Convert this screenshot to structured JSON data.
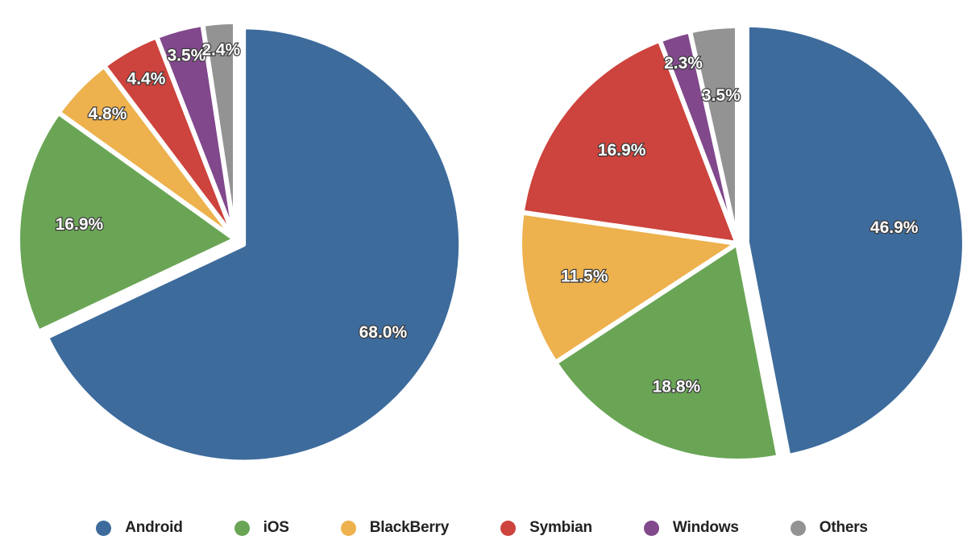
{
  "chart_data": [
    {
      "type": "pie",
      "categories": [
        "Android",
        "iOS",
        "BlackBerry",
        "Symbian",
        "Windows",
        "Others"
      ],
      "values": [
        68.0,
        16.9,
        4.8,
        4.4,
        3.5,
        2.4
      ],
      "labels": [
        "68.0%",
        "16.9%",
        "4.8%",
        "4.4%",
        "3.5%",
        "2.4%"
      ],
      "exploded": [
        "Android"
      ]
    },
    {
      "type": "pie",
      "categories": [
        "Android",
        "iOS",
        "BlackBerry",
        "Symbian",
        "Windows",
        "Others"
      ],
      "values": [
        46.9,
        18.8,
        11.5,
        16.9,
        2.3,
        3.5
      ],
      "labels": [
        "46.9%",
        "18.8%",
        "11.5%",
        "16.9%",
        "2.3%",
        "3.5%"
      ],
      "exploded": [
        "Android"
      ]
    }
  ],
  "legend": {
    "position": "bottom",
    "items": [
      {
        "label": "Android",
        "color": "#3d6b9c"
      },
      {
        "label": "iOS",
        "color": "#6aa556"
      },
      {
        "label": "BlackBerry",
        "color": "#edb14d"
      },
      {
        "label": "Symbian",
        "color": "#cd433d"
      },
      {
        "label": "Windows",
        "color": "#81488c"
      },
      {
        "label": "Others",
        "color": "#939393"
      }
    ]
  }
}
